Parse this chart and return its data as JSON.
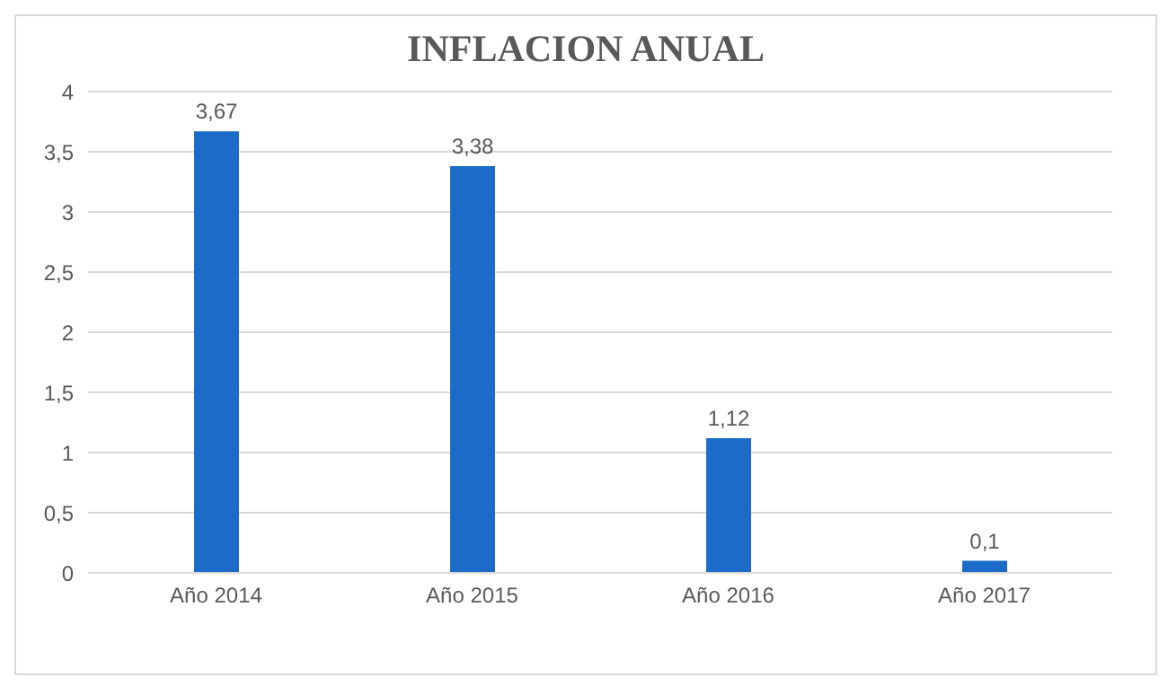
{
  "chart_data": {
    "type": "bar",
    "title": "INFLACION ANUAL",
    "categories": [
      "Año 2014",
      "Año 2015",
      "Año 2016",
      "Año 2017"
    ],
    "values": [
      3.67,
      3.38,
      1.12,
      0.1
    ],
    "value_labels": [
      "3,67",
      "3,38",
      "1,12",
      "0,1"
    ],
    "color": "#1a6cc8",
    "ylim": [
      0,
      4
    ],
    "yticks": [
      0,
      {
        "value": 0.5,
        "label": "0,5"
      },
      1,
      {
        "value": 1.5,
        "label": "1,5"
      },
      2,
      {
        "value": 2.5,
        "label": "2,5"
      },
      3,
      {
        "value": 3.5,
        "label": "3,5"
      },
      4
    ],
    "grid": "y"
  }
}
